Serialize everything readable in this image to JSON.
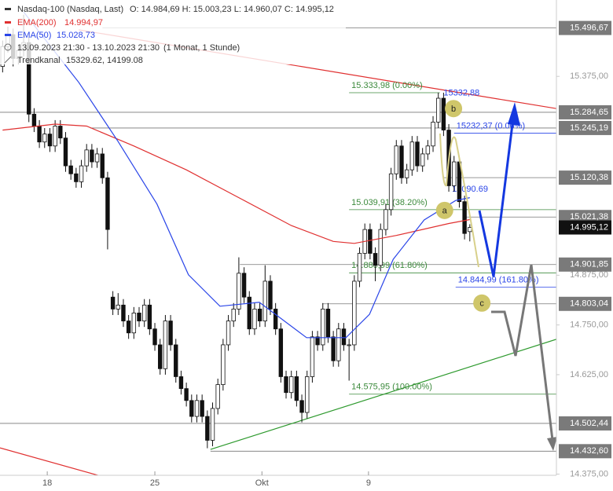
{
  "chart_data": {
    "type": "candlestick",
    "legend": {
      "instrument": "Nasdaq-100 (Nasdaq, Last)",
      "ohlc": "O: 14.984,69  H: 15.003,23  L: 14.960,07  C: 14.995,12",
      "period": "13.09.2023 21:30 - 13.10.2023 21:30",
      "resolution": "(1 Monat, 1 Stunde)",
      "trend_name": "Trendkanal",
      "trend_values": "15329.62, 14199.08"
    },
    "xlim": [
      -0.5,
      105.5
    ],
    "ylim": [
      14372,
      15567
    ],
    "xticks": [
      {
        "value": 8.5,
        "label": "18"
      },
      {
        "value": 29,
        "label": "25"
      },
      {
        "value": 49.4,
        "label": "Okt"
      },
      {
        "value": 69.7,
        "label": "9"
      }
    ],
    "yticks": [
      {
        "value": 15375,
        "label": "15.375,00"
      },
      {
        "value": 14875,
        "label": "14.875,00"
      },
      {
        "value": 14750,
        "label": "14.750,00"
      },
      {
        "value": 14625,
        "label": "14.625,00"
      },
      {
        "value": 14375,
        "label": "14.375,00"
      }
    ],
    "candles": [
      [
        15400,
        15465,
        15385,
        15450
      ],
      [
        15450,
        15500,
        15435,
        15480
      ],
      [
        15480,
        15495,
        15400,
        15420
      ],
      [
        15420,
        15455,
        15405,
        15440
      ],
      [
        15440,
        15530,
        15425,
        15460
      ],
      [
        15460,
        15475,
        15260,
        15280
      ],
      [
        15280,
        15295,
        15235,
        15250
      ],
      [
        15250,
        15265,
        15195,
        15210
      ],
      [
        15210,
        15245,
        15195,
        15230
      ],
      [
        15230,
        15245,
        15185,
        15200
      ],
      [
        15200,
        15265,
        15185,
        15250
      ],
      [
        15250,
        15265,
        15205,
        15220
      ],
      [
        15220,
        15235,
        15135,
        15150
      ],
      [
        15150,
        15165,
        15115,
        15130
      ],
      [
        15130,
        15145,
        15095,
        15110
      ],
      [
        15110,
        15165,
        15095,
        15150
      ],
      [
        15150,
        15205,
        15135,
        15190
      ],
      [
        15190,
        15205,
        15145,
        15160
      ],
      [
        15160,
        15195,
        15145,
        15180
      ],
      [
        15180,
        15195,
        15105,
        15120
      ],
      [
        15120,
        15135,
        14940,
        14990
      ],
      [
        14820,
        14835,
        14775,
        14790
      ],
      [
        14790,
        14830,
        14775,
        14800
      ],
      [
        14800,
        14815,
        14745,
        14760
      ],
      [
        14760,
        14775,
        14715,
        14730
      ],
      [
        14730,
        14795,
        14715,
        14780
      ],
      [
        14780,
        14795,
        14745,
        14760
      ],
      [
        14760,
        14815,
        14745,
        14800
      ],
      [
        14800,
        14815,
        14725,
        14740
      ],
      [
        14740,
        14755,
        14685,
        14700
      ],
      [
        14700,
        14715,
        14625,
        14640
      ],
      [
        14640,
        14775,
        14625,
        14760
      ],
      [
        14760,
        14775,
        14685,
        14700
      ],
      [
        14700,
        14715,
        14605,
        14620
      ],
      [
        14620,
        14635,
        14575,
        14590
      ],
      [
        14590,
        14605,
        14545,
        14560
      ],
      [
        14560,
        14575,
        14505,
        14520
      ],
      [
        14520,
        14575,
        14505,
        14560
      ],
      [
        14560,
        14575,
        14505,
        14520
      ],
      [
        14520,
        14535,
        14440,
        14460
      ],
      [
        14460,
        14555,
        14445,
        14540
      ],
      [
        14540,
        14615,
        14525,
        14600
      ],
      [
        14600,
        14715,
        14585,
        14700
      ],
      [
        14700,
        14775,
        14685,
        14760
      ],
      [
        14760,
        14805,
        14745,
        14790
      ],
      [
        14790,
        14920,
        14775,
        14880
      ],
      [
        14880,
        14895,
        14805,
        14820
      ],
      [
        14820,
        14835,
        14725,
        14740
      ],
      [
        14740,
        14805,
        14725,
        14790
      ],
      [
        14790,
        14805,
        14745,
        14760
      ],
      [
        14760,
        14900,
        14745,
        14860
      ],
      [
        14860,
        14875,
        14775,
        14790
      ],
      [
        14790,
        14805,
        14725,
        14740
      ],
      [
        14740,
        14755,
        14605,
        14620
      ],
      [
        14620,
        14635,
        14565,
        14580
      ],
      [
        14580,
        14635,
        14565,
        14620
      ],
      [
        14620,
        14635,
        14545,
        14560
      ],
      [
        14560,
        14575,
        14505,
        14530
      ],
      [
        14530,
        14635,
        14515,
        14620
      ],
      [
        14620,
        14735,
        14605,
        14720
      ],
      [
        14720,
        14735,
        14685,
        14700
      ],
      [
        14700,
        14805,
        14685,
        14790
      ],
      [
        14790,
        14805,
        14705,
        14720
      ],
      [
        14720,
        14735,
        14645,
        14660
      ],
      [
        14660,
        14755,
        14645,
        14740
      ],
      [
        14740,
        14755,
        14685,
        14700
      ],
      [
        14700,
        14715,
        14610,
        14700
      ],
      [
        14700,
        14875,
        14685,
        14860
      ],
      [
        14860,
        14945,
        14845,
        14930
      ],
      [
        14930,
        15005,
        14915,
        14990
      ],
      [
        14990,
        15005,
        14915,
        14930
      ],
      [
        14930,
        14945,
        14860,
        14900
      ],
      [
        14900,
        15005,
        14885,
        14990
      ],
      [
        14990,
        15055,
        14975,
        15040
      ],
      [
        15040,
        15145,
        15025,
        15130
      ],
      [
        15130,
        15215,
        15115,
        15200
      ],
      [
        15200,
        15215,
        15105,
        15120
      ],
      [
        15120,
        15155,
        15105,
        15140
      ],
      [
        15140,
        15225,
        15125,
        15210
      ],
      [
        15210,
        15225,
        15135,
        15150
      ],
      [
        15150,
        15195,
        15135,
        15180
      ],
      [
        15180,
        15215,
        15165,
        15200
      ],
      [
        15200,
        15275,
        15185,
        15260
      ],
      [
        15260,
        15334,
        15245,
        15320
      ],
      [
        15320,
        15334,
        15225,
        15240
      ],
      [
        15240,
        15255,
        15085,
        15100
      ],
      [
        15100,
        15175,
        15085,
        15160
      ],
      [
        15160,
        15175,
        15045,
        15060
      ],
      [
        15060,
        15075,
        14965,
        14980
      ],
      [
        14984.69,
        15003.23,
        14960.07,
        14995.12
      ]
    ],
    "series": [
      {
        "name": "EMA(200)",
        "value_label": "14.994,97",
        "color": "#e03030",
        "x": [
          0,
          10,
          16,
          25,
          35,
          45,
          55,
          63,
          67,
          75,
          85,
          89
        ],
        "values": [
          15240,
          15255,
          15250,
          15200,
          15140,
          15070,
          15000,
          14960,
          14955,
          14975,
          15005,
          15015
        ]
      },
      {
        "name": "EMA(50)",
        "value_label": "15.028,73",
        "color": "#2a45e8",
        "x": [
          4,
          14.5,
          22,
          29.4,
          35.4,
          41.4,
          48.9,
          57.9,
          65.4,
          69.9,
          74.4,
          80.3,
          86.3,
          89
        ],
        "values": [
          15537,
          15360,
          15211,
          15054,
          14876,
          14797,
          14807,
          14718,
          14718,
          14777,
          14915,
          15014,
          15063,
          15070
        ]
      }
    ],
    "trendlines": [
      {
        "color": "#e03030",
        "x": [
          14.5,
          105.5
        ],
        "values": [
          15492,
          15294
        ]
      },
      {
        "color": "#e03030",
        "x": [
          -0.5,
          28.7
        ],
        "values": [
          14441,
          14333
        ]
      },
      {
        "color": "#2e9a2e",
        "x": [
          39.6,
          105.5
        ],
        "values": [
          14437,
          14714
        ]
      }
    ],
    "levels": [
      {
        "value": 15496.67,
        "label": "15.496,67",
        "start": 19
      },
      {
        "value": 15284.65,
        "label": "15.284,65",
        "start": -0.5
      },
      {
        "value": 15245.19,
        "label": "15.245,19",
        "start": 16.7
      },
      {
        "value": 15120.38,
        "label": "15.120,38",
        "start": 84
      },
      {
        "value": 15021.38,
        "label": "15.021,38",
        "start": 88
      },
      {
        "value": 14901.85,
        "label": "14.901,85",
        "start": 45.2
      },
      {
        "value": 14803.04,
        "label": "14.803,04",
        "start": 60.9
      },
      {
        "value": 14502.44,
        "label": "14.502,44",
        "start": -0.5
      },
      {
        "value": 14432.6,
        "label": "14.432,60",
        "start": 39.6
      }
    ],
    "current": {
      "value": 14995.12,
      "label": "14.995,12"
    },
    "fibs": [
      {
        "label": "15.333,98 (0.00%)",
        "value": 15333.98,
        "start": 66,
        "end": 83.3,
        "color": "#3c8a3c"
      },
      {
        "label": "15.039,91 (38.20%)",
        "value": 15039.91,
        "start": 66,
        "end": 105.5,
        "color": "#3c8a3c"
      },
      {
        "label": "14.880,99 (61.80%)",
        "value": 14880.99,
        "start": 66,
        "end": 105.5,
        "color": "#3c8a3c"
      },
      {
        "label": "14.575,95 (100.00%)",
        "value": 14575.95,
        "start": 66,
        "end": 105.5,
        "color": "#3c8a3c"
      },
      {
        "label": "15232,37 (0.00%)",
        "value": 15232.37,
        "start": 86,
        "end": 105.5,
        "color": "#2a45e8"
      },
      {
        "label": "14.844,99 (161.80%)",
        "value": 14844.99,
        "start": 86.3,
        "end": 105.5,
        "color": "#2a45e8"
      }
    ],
    "notes": [
      {
        "label": "15332,88",
        "x": 84,
        "value": 15332.88,
        "color": "#2a45e8"
      },
      {
        "label": "15090.69",
        "x": 85.6,
        "value": 15090.69,
        "color": "#2a45e8"
      }
    ],
    "waves": [
      {
        "label": "b",
        "x": 85.9,
        "value": 15294
      },
      {
        "label": "a",
        "x": 84.2,
        "value": 15038
      },
      {
        "label": "c",
        "x": 91.3,
        "value": 14805
      }
    ]
  }
}
